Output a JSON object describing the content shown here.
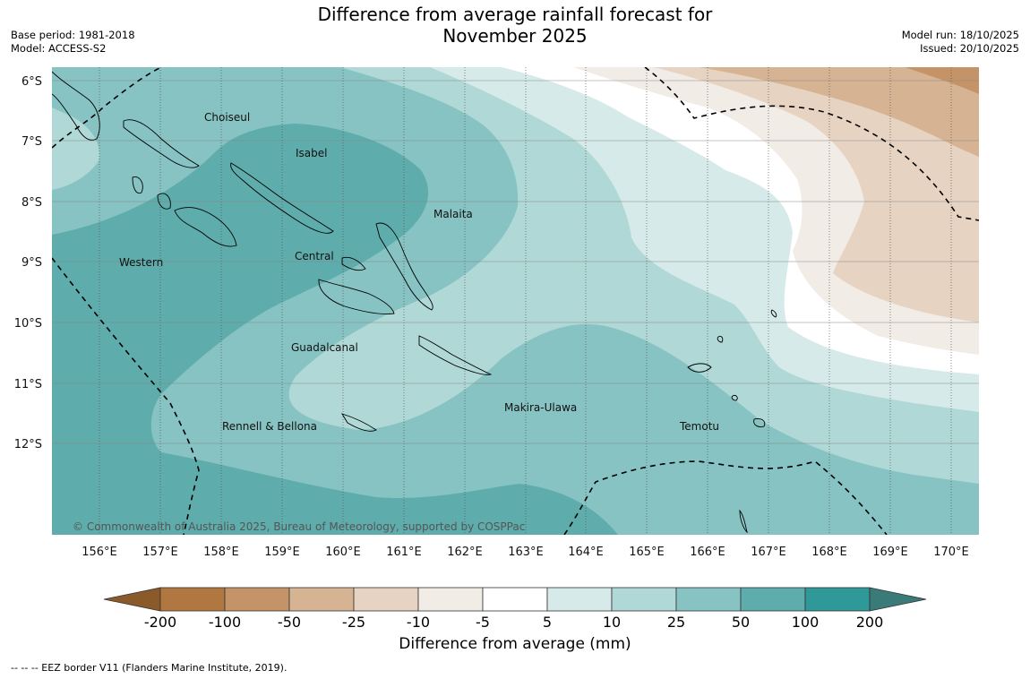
{
  "title_line1": "Difference from average rainfall forecast for",
  "title_line2": "November 2025",
  "base_period": "Base period: 1981-2018",
  "model": "Model: ACCESS-S2",
  "model_run": "Model run: 18/10/2025",
  "issued": "Issued: 20/10/2025",
  "lat_ticks": [
    "6°S",
    "7°S",
    "8°S",
    "9°S",
    "10°S",
    "11°S",
    "12°S"
  ],
  "lon_ticks": [
    "156°E",
    "157°E",
    "158°E",
    "159°E",
    "160°E",
    "161°E",
    "162°E",
    "163°E",
    "164°E",
    "165°E",
    "166°E",
    "167°E",
    "168°E",
    "169°E",
    "170°E"
  ],
  "provinces": [
    "Choiseul",
    "Isabel",
    "Malaita",
    "Western",
    "Central",
    "Guadalcanal",
    "Makira-Ulawa",
    "Rennell & Bellona",
    "Temotu"
  ],
  "copyright": "© Commonwealth of Australia 2025, Bureau of Meteorology, supported by COSPPac",
  "colorbar": {
    "title": "Difference from average (mm)",
    "ticks": [
      "-200",
      "-100",
      "-50",
      "-25",
      "-10",
      "-5",
      "5",
      "10",
      "25",
      "50",
      "100",
      "200"
    ],
    "colors": [
      "#8b5a2b",
      "#b07840",
      "#c49468",
      "#d6b392",
      "#e6d3c2",
      "#f2ece6",
      "#ffffff",
      "#d6eae9",
      "#afd8d6",
      "#86c3c2",
      "#5eacac",
      "#2f9898",
      "#3a7a78"
    ]
  },
  "footnote": "--  --  -- EEZ border V11 (Flanders Marine Institute, 2019)."
}
